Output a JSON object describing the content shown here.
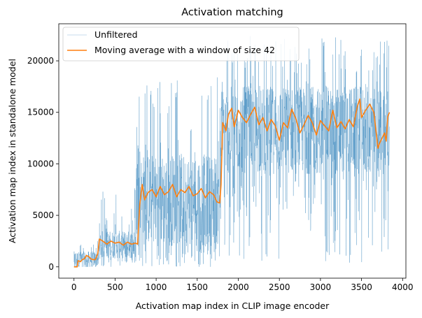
{
  "chart_data": {
    "type": "line",
    "title": "Activation matching",
    "xlabel": "Activation map index in CLIP image encoder",
    "ylabel": "Activation map index in standalone model",
    "xlim": [
      -185,
      4040
    ],
    "ylim": [
      -1100,
      23600
    ],
    "xticks": [
      0,
      500,
      1000,
      1500,
      2000,
      2500,
      3000,
      3500,
      4000
    ],
    "yticks": [
      0,
      5000,
      10000,
      15000,
      20000
    ],
    "legend": {
      "placement": "top-left"
    },
    "grid": false,
    "series": [
      {
        "name": "Unfiltered",
        "color": "#1f77b4",
        "style": "thin-noisy",
        "segments": [
          {
            "x_range": [
              0,
              300
            ],
            "low": 0,
            "high": 1500,
            "spike_max": 2500
          },
          {
            "x_range": [
              300,
              760
            ],
            "low": 800,
            "high": 3500,
            "spike_max": 8000
          },
          {
            "x_range": [
              760,
              1790
            ],
            "low": 2000,
            "high": 11000,
            "spike_max": 18500
          },
          {
            "x_range": [
              1790,
              3840
            ],
            "low": 9000,
            "high": 17500,
            "spike_max": 22600
          }
        ]
      },
      {
        "name": "Moving average with a window of size 42",
        "color": "#ff7f0e",
        "points": [
          [
            0,
            0
          ],
          [
            40,
            0
          ],
          [
            50,
            600
          ],
          [
            80,
            500
          ],
          [
            100,
            700
          ],
          [
            130,
            800
          ],
          [
            150,
            1100
          ],
          [
            180,
            1000
          ],
          [
            200,
            800
          ],
          [
            230,
            700
          ],
          [
            260,
            700
          ],
          [
            290,
            1300
          ],
          [
            310,
            2700
          ],
          [
            350,
            2500
          ],
          [
            400,
            2200
          ],
          [
            450,
            2500
          ],
          [
            500,
            2300
          ],
          [
            550,
            2400
          ],
          [
            600,
            2100
          ],
          [
            650,
            2400
          ],
          [
            700,
            2200
          ],
          [
            750,
            2300
          ],
          [
            775,
            2200
          ],
          [
            800,
            6000
          ],
          [
            830,
            8000
          ],
          [
            860,
            6500
          ],
          [
            900,
            7200
          ],
          [
            950,
            7500
          ],
          [
            1000,
            6800
          ],
          [
            1050,
            7800
          ],
          [
            1100,
            7000
          ],
          [
            1150,
            7300
          ],
          [
            1200,
            8000
          ],
          [
            1250,
            6800
          ],
          [
            1300,
            7500
          ],
          [
            1350,
            7200
          ],
          [
            1400,
            7800
          ],
          [
            1450,
            6900
          ],
          [
            1500,
            7100
          ],
          [
            1550,
            7600
          ],
          [
            1600,
            6700
          ],
          [
            1650,
            7300
          ],
          [
            1700,
            7000
          ],
          [
            1740,
            6300
          ],
          [
            1775,
            6200
          ],
          [
            1790,
            8000
          ],
          [
            1810,
            14000
          ],
          [
            1850,
            13200
          ],
          [
            1880,
            14800
          ],
          [
            1920,
            15400
          ],
          [
            1950,
            13600
          ],
          [
            2000,
            15200
          ],
          [
            2050,
            14500
          ],
          [
            2100,
            14000
          ],
          [
            2150,
            14800
          ],
          [
            2200,
            15500
          ],
          [
            2250,
            13800
          ],
          [
            2300,
            14500
          ],
          [
            2350,
            13200
          ],
          [
            2400,
            14300
          ],
          [
            2450,
            13700
          ],
          [
            2500,
            12300
          ],
          [
            2550,
            14000
          ],
          [
            2600,
            13500
          ],
          [
            2650,
            15300
          ],
          [
            2700,
            14400
          ],
          [
            2750,
            13000
          ],
          [
            2800,
            13800
          ],
          [
            2850,
            14700
          ],
          [
            2900,
            14000
          ],
          [
            2950,
            12800
          ],
          [
            3000,
            14200
          ],
          [
            3050,
            13700
          ],
          [
            3100,
            13200
          ],
          [
            3150,
            15200
          ],
          [
            3200,
            13500
          ],
          [
            3250,
            14100
          ],
          [
            3300,
            13400
          ],
          [
            3350,
            14300
          ],
          [
            3400,
            13600
          ],
          [
            3450,
            15600
          ],
          [
            3480,
            16300
          ],
          [
            3500,
            14500
          ],
          [
            3550,
            15200
          ],
          [
            3600,
            15800
          ],
          [
            3650,
            15000
          ],
          [
            3700,
            11500
          ],
          [
            3720,
            12000
          ],
          [
            3750,
            12500
          ],
          [
            3780,
            13000
          ],
          [
            3800,
            12200
          ],
          [
            3820,
            14600
          ],
          [
            3840,
            15000
          ]
        ]
      }
    ]
  }
}
